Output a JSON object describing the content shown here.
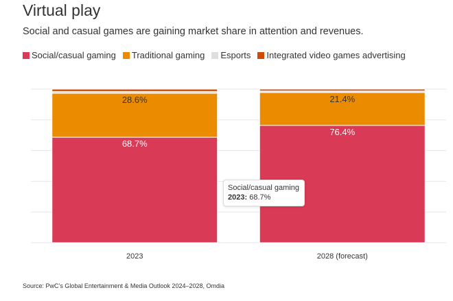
{
  "header": {
    "title": "Virtual play",
    "subtitle": "Social and casual games are gaining market share in attention and revenues."
  },
  "legend": [
    {
      "label": "Social/casual gaming",
      "color": "#d93a55"
    },
    {
      "label": "Traditional gaming",
      "color": "#eb8c00"
    },
    {
      "label": "Esports",
      "color": "#dedede"
    },
    {
      "label": "Integrated video games advertising",
      "color": "#d04a02"
    }
  ],
  "chart_data": {
    "type": "bar",
    "stacked": true,
    "title": "Virtual play",
    "xlabel": "",
    "ylabel": "",
    "ylim": [
      0,
      100
    ],
    "grid": true,
    "categories": [
      "2023",
      "2028 (forecast)"
    ],
    "series": [
      {
        "name": "Social/casual gaming",
        "color": "#d93a55",
        "values": [
          68.7,
          76.4
        ],
        "labels": [
          "68.7%",
          "76.4%"
        ],
        "label_color": "#ffffff"
      },
      {
        "name": "Traditional gaming",
        "color": "#eb8c00",
        "values": [
          28.6,
          21.4
        ],
        "labels": [
          "28.6%",
          "21.4%"
        ],
        "label_color": "#333333"
      },
      {
        "name": "Esports",
        "color": "#dedede",
        "values": [
          1.2,
          1.0
        ],
        "labels": [
          "",
          ""
        ],
        "label_color": "#333333"
      },
      {
        "name": "Integrated video games advertising",
        "color": "#d04a02",
        "values": [
          1.5,
          1.2
        ],
        "labels": [
          "",
          ""
        ],
        "label_color": "#333333"
      }
    ]
  },
  "tooltip": {
    "series_name": "Social/casual gaming",
    "category": "2023",
    "value_text": "68.7%"
  },
  "footer": {
    "source": "Source: PwC’s Global Entertainment & Media Outlook 2024–2028, Omdia"
  }
}
